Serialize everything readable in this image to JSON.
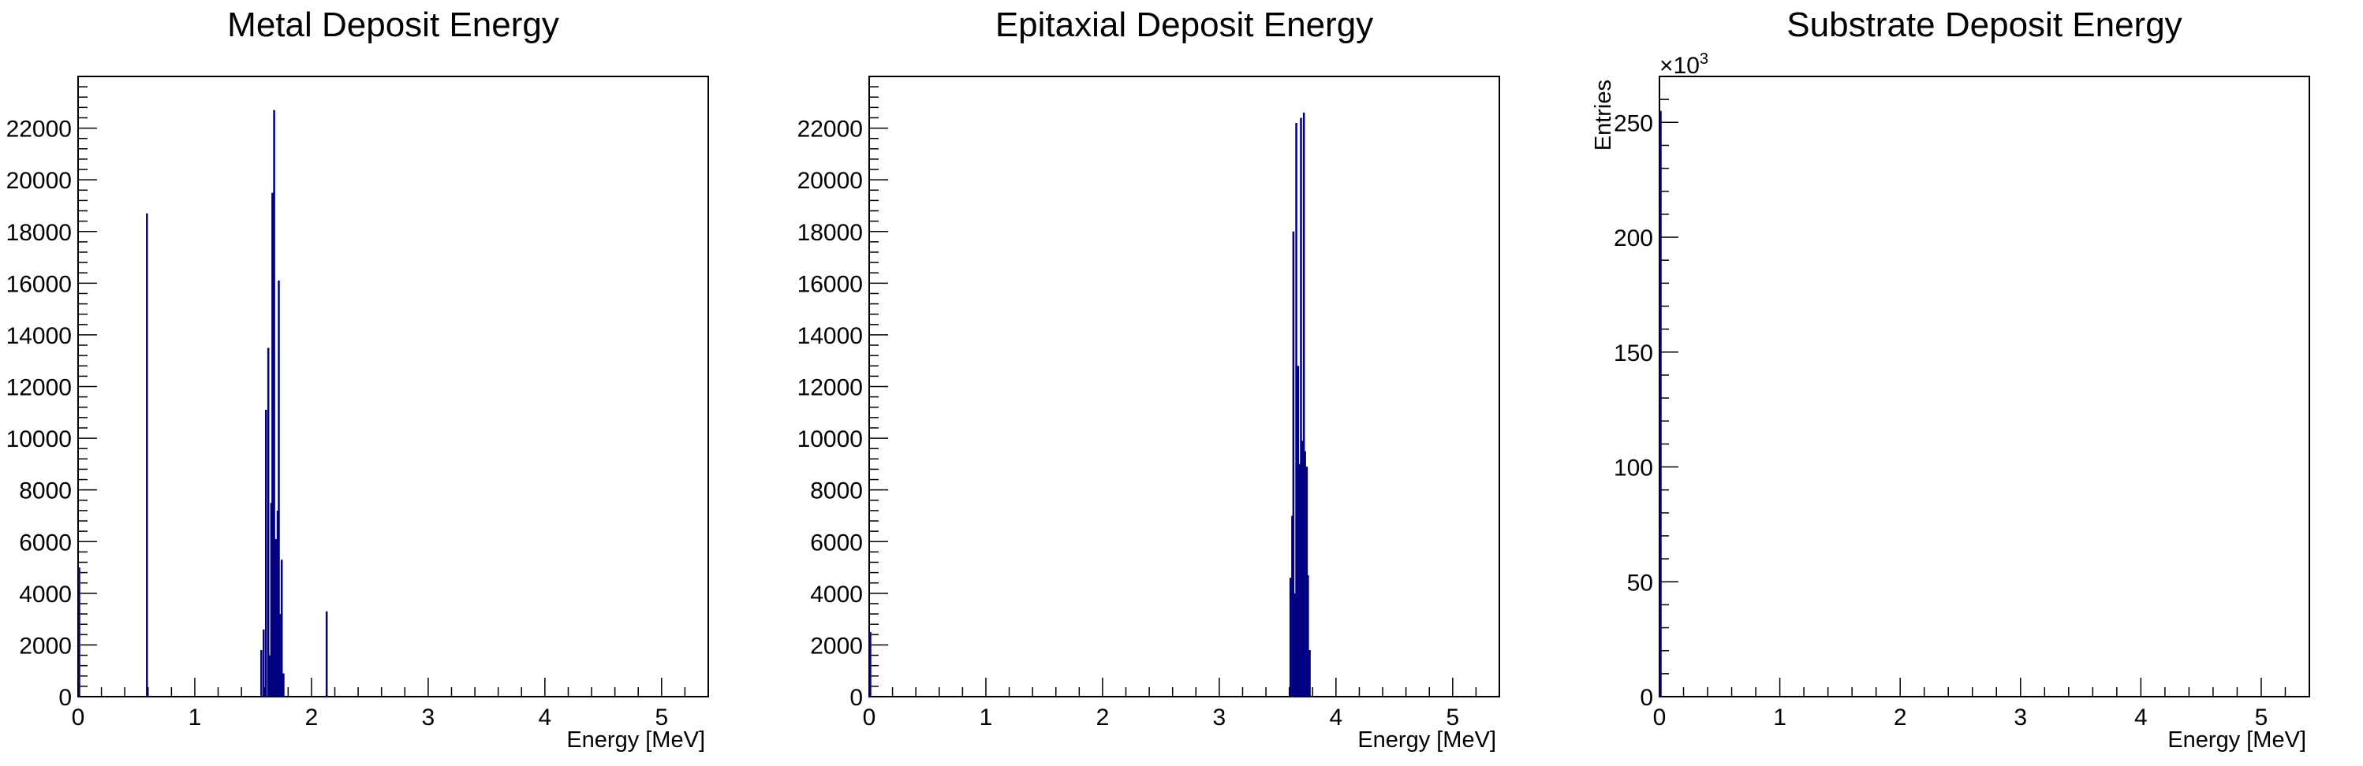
{
  "chart_data": [
    {
      "type": "bar",
      "title": "Metal Deposit Energy",
      "xlabel": "Energy [MeV]",
      "ylabel": "",
      "exponent_label": "",
      "xlim": [
        0,
        5.4
      ],
      "ylim": [
        0,
        24000
      ],
      "xticks": [
        0,
        1,
        2,
        3,
        4,
        5
      ],
      "yticks": [
        0,
        2000,
        4000,
        6000,
        8000,
        10000,
        12000,
        14000,
        16000,
        18000,
        20000,
        22000
      ],
      "line_color": "#000080",
      "bins": [
        {
          "x": 0.0,
          "y": 5000
        },
        {
          "x": 0.58,
          "y": 18700
        },
        {
          "x": 1.56,
          "y": 1800
        },
        {
          "x": 1.58,
          "y": 2600
        },
        {
          "x": 1.6,
          "y": 11100
        },
        {
          "x": 1.62,
          "y": 13500
        },
        {
          "x": 1.635,
          "y": 1600
        },
        {
          "x": 1.645,
          "y": 7500
        },
        {
          "x": 1.655,
          "y": 19500
        },
        {
          "x": 1.67,
          "y": 22700
        },
        {
          "x": 1.685,
          "y": 6100
        },
        {
          "x": 1.7,
          "y": 7200
        },
        {
          "x": 1.71,
          "y": 16100
        },
        {
          "x": 1.725,
          "y": 3200
        },
        {
          "x": 1.735,
          "y": 5300
        },
        {
          "x": 1.75,
          "y": 900
        },
        {
          "x": 2.12,
          "y": 3300
        }
      ]
    },
    {
      "type": "bar",
      "title": "Epitaxial Deposit Energy",
      "xlabel": "Energy [MeV]",
      "ylabel": "",
      "exponent_label": "",
      "xlim": [
        0,
        5.4
      ],
      "ylim": [
        0,
        24000
      ],
      "xticks": [
        0,
        1,
        2,
        3,
        4,
        5
      ],
      "yticks": [
        0,
        2000,
        4000,
        6000,
        8000,
        10000,
        12000,
        14000,
        16000,
        18000,
        20000,
        22000
      ],
      "line_color": "#000080",
      "bins": [
        {
          "x": 0.0,
          "y": 2500
        },
        {
          "x": 3.6,
          "y": 4600
        },
        {
          "x": 3.615,
          "y": 7000
        },
        {
          "x": 3.625,
          "y": 18000
        },
        {
          "x": 3.64,
          "y": 4000
        },
        {
          "x": 3.65,
          "y": 22200
        },
        {
          "x": 3.665,
          "y": 12800
        },
        {
          "x": 3.675,
          "y": 9000
        },
        {
          "x": 3.69,
          "y": 22400
        },
        {
          "x": 3.7,
          "y": 9900
        },
        {
          "x": 3.715,
          "y": 22600
        },
        {
          "x": 3.725,
          "y": 9500
        },
        {
          "x": 3.74,
          "y": 8900
        },
        {
          "x": 3.75,
          "y": 4700
        },
        {
          "x": 3.765,
          "y": 1800
        }
      ]
    },
    {
      "type": "bar",
      "title": "Substrate Deposit Energy",
      "xlabel": "Energy [MeV]",
      "ylabel": "Entries",
      "exponent_label": "×10",
      "exponent_power": "3",
      "xlim": [
        0,
        5.4
      ],
      "ylim": [
        0,
        270
      ],
      "xticks": [
        0,
        1,
        2,
        3,
        4,
        5
      ],
      "yticks": [
        0,
        50,
        100,
        150,
        200,
        250
      ],
      "line_color": "#000080",
      "bins": [
        {
          "x": 0.0,
          "y": 255
        }
      ]
    }
  ]
}
